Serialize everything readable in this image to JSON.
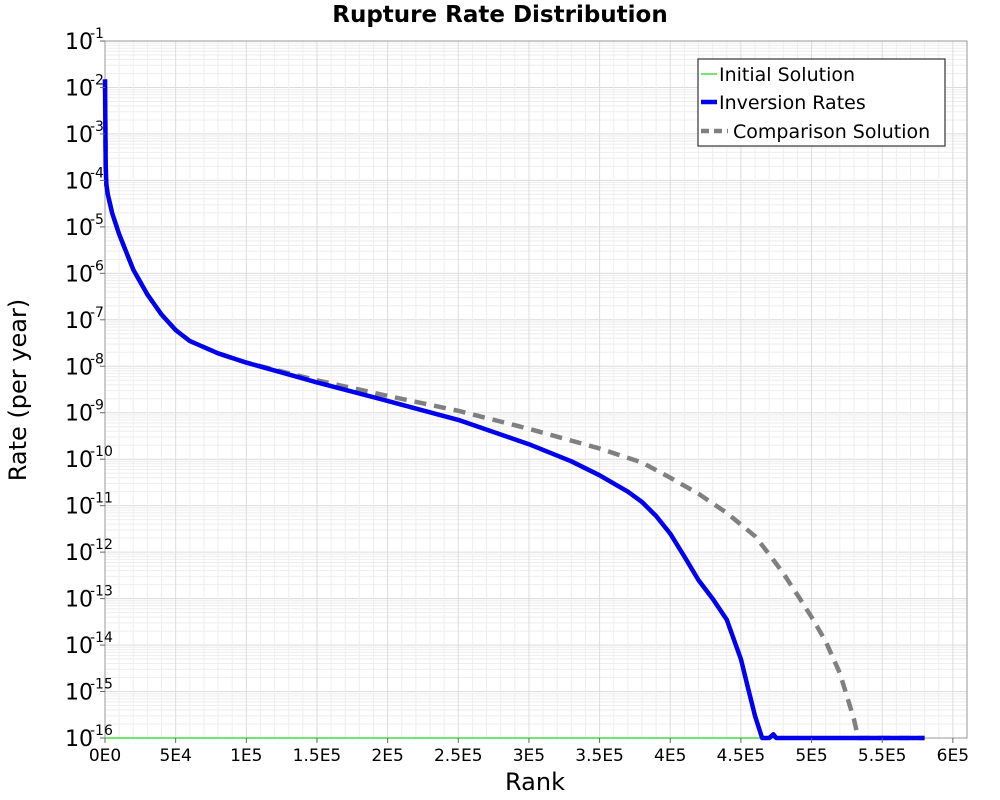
{
  "chart_data": {
    "type": "line",
    "title": "Rupture Rate Distribution",
    "xlabel": "Rank",
    "ylabel": "Rate (per year)",
    "xlim": [
      0,
      610000
    ],
    "ylim": [
      1e-16,
      0.1
    ],
    "yscale": "log",
    "grid": true,
    "legend_position": "top-right",
    "x_ticks": [
      {
        "value": 0,
        "label": "0E0"
      },
      {
        "value": 50000,
        "label": "5E4"
      },
      {
        "value": 100000,
        "label": "1E5"
      },
      {
        "value": 150000,
        "label": "1.5E5"
      },
      {
        "value": 200000,
        "label": "2E5"
      },
      {
        "value": 250000,
        "label": "2.5E5"
      },
      {
        "value": 300000,
        "label": "3E5"
      },
      {
        "value": 350000,
        "label": "3.5E5"
      },
      {
        "value": 400000,
        "label": "4E5"
      },
      {
        "value": 450000,
        "label": "4.5E5"
      },
      {
        "value": 500000,
        "label": "5E5"
      },
      {
        "value": 550000,
        "label": "5.5E5"
      },
      {
        "value": 600000,
        "label": "6E5"
      }
    ],
    "y_ticks": [
      {
        "value": 0.1,
        "base": "10",
        "exp": "-1"
      },
      {
        "value": 0.01,
        "base": "10",
        "exp": "-2"
      },
      {
        "value": 0.001,
        "base": "10",
        "exp": "-3"
      },
      {
        "value": 0.0001,
        "base": "10",
        "exp": "-4"
      },
      {
        "value": 1e-05,
        "base": "10",
        "exp": "-5"
      },
      {
        "value": 1e-06,
        "base": "10",
        "exp": "-6"
      },
      {
        "value": 1e-07,
        "base": "10",
        "exp": "-7"
      },
      {
        "value": 1e-08,
        "base": "10",
        "exp": "-8"
      },
      {
        "value": 1e-09,
        "base": "10",
        "exp": "-9"
      },
      {
        "value": 1e-10,
        "base": "10",
        "exp": "-10"
      },
      {
        "value": 1e-11,
        "base": "10",
        "exp": "-11"
      },
      {
        "value": 1e-12,
        "base": "10",
        "exp": "-12"
      },
      {
        "value": 1e-13,
        "base": "10",
        "exp": "-13"
      },
      {
        "value": 1e-14,
        "base": "10",
        "exp": "-14"
      },
      {
        "value": 1e-15,
        "base": "10",
        "exp": "-15"
      },
      {
        "value": 1e-16,
        "base": "10",
        "exp": "-16"
      }
    ],
    "series": [
      {
        "name": "Initial Solution",
        "color": "#44dd44",
        "style": "solid-thin",
        "x": [
          0,
          580000
        ],
        "y": [
          1e-16,
          1e-16
        ]
      },
      {
        "name": "Inversion Rates",
        "color": "#0000ee",
        "style": "solid-thick",
        "x": [
          0,
          500,
          1000,
          2000,
          5000,
          10000,
          20000,
          30000,
          40000,
          50000,
          60000,
          80000,
          100000,
          150000,
          200000,
          250000,
          300000,
          330000,
          350000,
          370000,
          380000,
          390000,
          400000,
          410000,
          420000,
          430000,
          440000,
          450000,
          455000,
          460000,
          465000,
          470000,
          473000,
          475000,
          500000,
          540000,
          580000
        ],
        "y": [
          0.015,
          0.0002,
          8e-05,
          5e-05,
          2e-05,
          7e-06,
          1.2e-06,
          3.5e-07,
          1.3e-07,
          6e-08,
          3.5e-08,
          1.9e-08,
          1.2e-08,
          4.5e-09,
          1.8e-09,
          7e-10,
          2.1e-10,
          9e-11,
          4.5e-11,
          2e-11,
          1.2e-11,
          6e-12,
          2.5e-12,
          8e-13,
          2.5e-13,
          1e-13,
          3.5e-14,
          5e-15,
          1.2e-15,
          3e-16,
          1e-16,
          3e-17,
          1.2e-16,
          1e-16,
          1e-16,
          1e-16,
          1e-16
        ]
      },
      {
        "name": "Comparison Solution",
        "color": "#808080",
        "style": "dashed-thick",
        "x": [
          0,
          500,
          1000,
          2000,
          5000,
          10000,
          20000,
          30000,
          40000,
          50000,
          60000,
          80000,
          100000,
          150000,
          200000,
          250000,
          300000,
          350000,
          380000,
          400000,
          420000,
          440000,
          460000,
          470000,
          480000,
          490000,
          500000,
          510000,
          520000,
          525000,
          530000,
          533000,
          535000,
          560000,
          580000
        ],
        "y": [
          0.015,
          0.0002,
          8e-05,
          5e-05,
          2e-05,
          7e-06,
          1.2e-06,
          3.5e-07,
          1.3e-07,
          6e-08,
          3.5e-08,
          1.9e-08,
          1.2e-08,
          5e-09,
          2.3e-09,
          1.1e-09,
          4.5e-10,
          1.7e-10,
          8.5e-11,
          4e-11,
          1.8e-11,
          7e-12,
          2.2e-12,
          9e-13,
          3.5e-13,
          1.2e-13,
          4e-14,
          1.2e-14,
          2.5e-15,
          8e-16,
          2.5e-16,
          1e-16,
          1e-16,
          1e-16,
          1e-16
        ]
      }
    ]
  }
}
